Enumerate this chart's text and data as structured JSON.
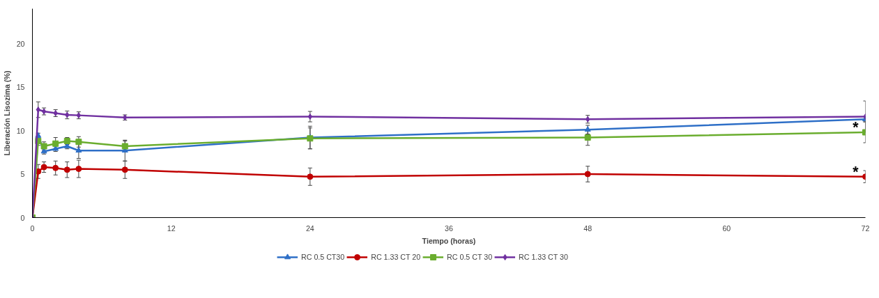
{
  "chart_data": {
    "type": "line",
    "xlabel": "Tiempo (horas)",
    "ylabel": "Liberación Lisozima (%)",
    "x": [
      0,
      0.5,
      1,
      2,
      3,
      4,
      8,
      24,
      48,
      72
    ],
    "xlim": [
      0,
      72
    ],
    "xticks": [
      0,
      12,
      24,
      36,
      48,
      60,
      72
    ],
    "ylim": [
      0,
      24
    ],
    "yticks": [
      0,
      5,
      10,
      15,
      20
    ],
    "grid": false,
    "legend": "bottom",
    "series": [
      {
        "name": "RC 0.5 CT30",
        "color": "#2e6fc7",
        "marker": "triangle",
        "values": [
          0,
          9.4,
          7.6,
          7.9,
          8.2,
          7.7,
          7.7,
          9.2,
          10.1,
          11.3
        ],
        "errors": [
          null,
          0.3,
          0.3,
          0.3,
          0.3,
          0.9,
          1.2,
          1.3,
          0.5,
          0.3
        ]
      },
      {
        "name": "RC 1.33 CT 20",
        "color": "#c00000",
        "marker": "circle",
        "values": [
          0,
          5.3,
          5.8,
          5.7,
          5.5,
          5.6,
          5.5,
          4.7,
          5.0,
          4.7
        ],
        "errors": [
          null,
          0.8,
          0.6,
          0.8,
          0.9,
          1.0,
          1.0,
          1.0,
          0.9,
          0.7
        ]
      },
      {
        "name": "RC 0.5 CT 30",
        "color": "#6aad2e",
        "marker": "square",
        "values": [
          0,
          8.8,
          8.2,
          8.5,
          8.8,
          8.7,
          8.2,
          9.1,
          9.2,
          9.8
        ],
        "errors": [
          null,
          0.5,
          0.5,
          0.7,
          0.4,
          0.6,
          0.6,
          1.2,
          0.9,
          1.2
        ]
      },
      {
        "name": "RC 1.33 CT 30",
        "color": "#7030a0",
        "marker": "diamond",
        "values": [
          0,
          12.4,
          12.2,
          12.0,
          11.8,
          11.75,
          11.5,
          11.6,
          11.3,
          11.6
        ],
        "errors": [
          null,
          0.9,
          0.4,
          0.4,
          0.45,
          0.4,
          0.3,
          0.6,
          0.45,
          1.8
        ]
      }
    ],
    "annotations": [
      {
        "text": "*",
        "x": 72,
        "y": 9.8
      },
      {
        "text": "*",
        "x": 72,
        "y": 4.7
      }
    ]
  }
}
